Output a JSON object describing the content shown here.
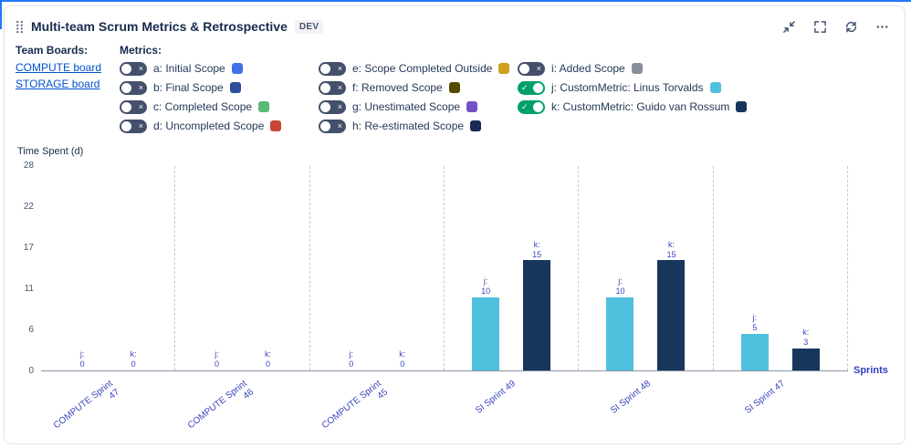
{
  "header": {
    "title": "Multi-team Scrum Metrics & Retrospective",
    "badge": "DEV",
    "actions": [
      "collapse-arrows-icon",
      "fullscreen-icon",
      "refresh-icon",
      "ellipsis-icon"
    ]
  },
  "team_boards": {
    "label": "Team Boards:",
    "links": [
      "COMPUTE board",
      "STORAGE board"
    ]
  },
  "metrics": {
    "label": "Metrics:",
    "columns": [
      [
        {
          "label": "a: Initial Scope",
          "color": "#4171e8",
          "enabled": false
        },
        {
          "label": "b: Final Scope",
          "color": "#2c4f9c",
          "enabled": false
        },
        {
          "label": "c: Completed Scope",
          "color": "#5cb878",
          "enabled": false
        },
        {
          "label": "d: Uncompleted Scope",
          "color": "#c94634",
          "enabled": false
        }
      ],
      [
        {
          "label": "e: Scope Completed Outside",
          "color": "#cfa01f",
          "enabled": false
        },
        {
          "label": "f: Removed Scope",
          "color": "#564a00",
          "enabled": false
        },
        {
          "label": "g: Unestimated Scope",
          "color": "#7551c9",
          "enabled": false
        },
        {
          "label": "h: Re-estimated Scope",
          "color": "#1b2a54",
          "enabled": false
        }
      ],
      [
        {
          "label": "i: Added Scope",
          "color": "#888f9b",
          "enabled": false
        },
        {
          "label": "j: CustomMetric: Linus Torvalds",
          "color": "#4fc1de",
          "enabled": true
        },
        {
          "label": "k: CustomMetric: Guido van Rossum",
          "color": "#16365c",
          "enabled": true
        }
      ]
    ]
  },
  "chart_data": {
    "type": "bar",
    "title": "",
    "ylabel": "Time Spent (d)",
    "xlabel": "Sprints",
    "ylim": [
      0,
      28
    ],
    "yticks": [
      0,
      6,
      11,
      17,
      22,
      28
    ],
    "grid": "vertical-dashed",
    "legend_position": "none",
    "categories": [
      "COMPUTE Sprint 47",
      "COMPUTE Sprint 46",
      "COMPUTE Sprint 45",
      "SI Sprint 49",
      "SI Sprint 48",
      "SI Sprint 47"
    ],
    "series": [
      {
        "name": "j",
        "label": "j: CustomMetric: Linus Torvalds",
        "color": "#4fc1de",
        "values": [
          0,
          0,
          0,
          10,
          10,
          5
        ]
      },
      {
        "name": "k",
        "label": "k: CustomMetric: Guido van Rossum",
        "color": "#16365c",
        "values": [
          0,
          0,
          0,
          15,
          15,
          3
        ]
      }
    ]
  },
  "colors": {
    "link": "#0052cc",
    "toggle_on": "#00a06a",
    "toggle_off": "#44506b",
    "chart_text": "#3a46be",
    "accent_top": "#2176ff"
  }
}
